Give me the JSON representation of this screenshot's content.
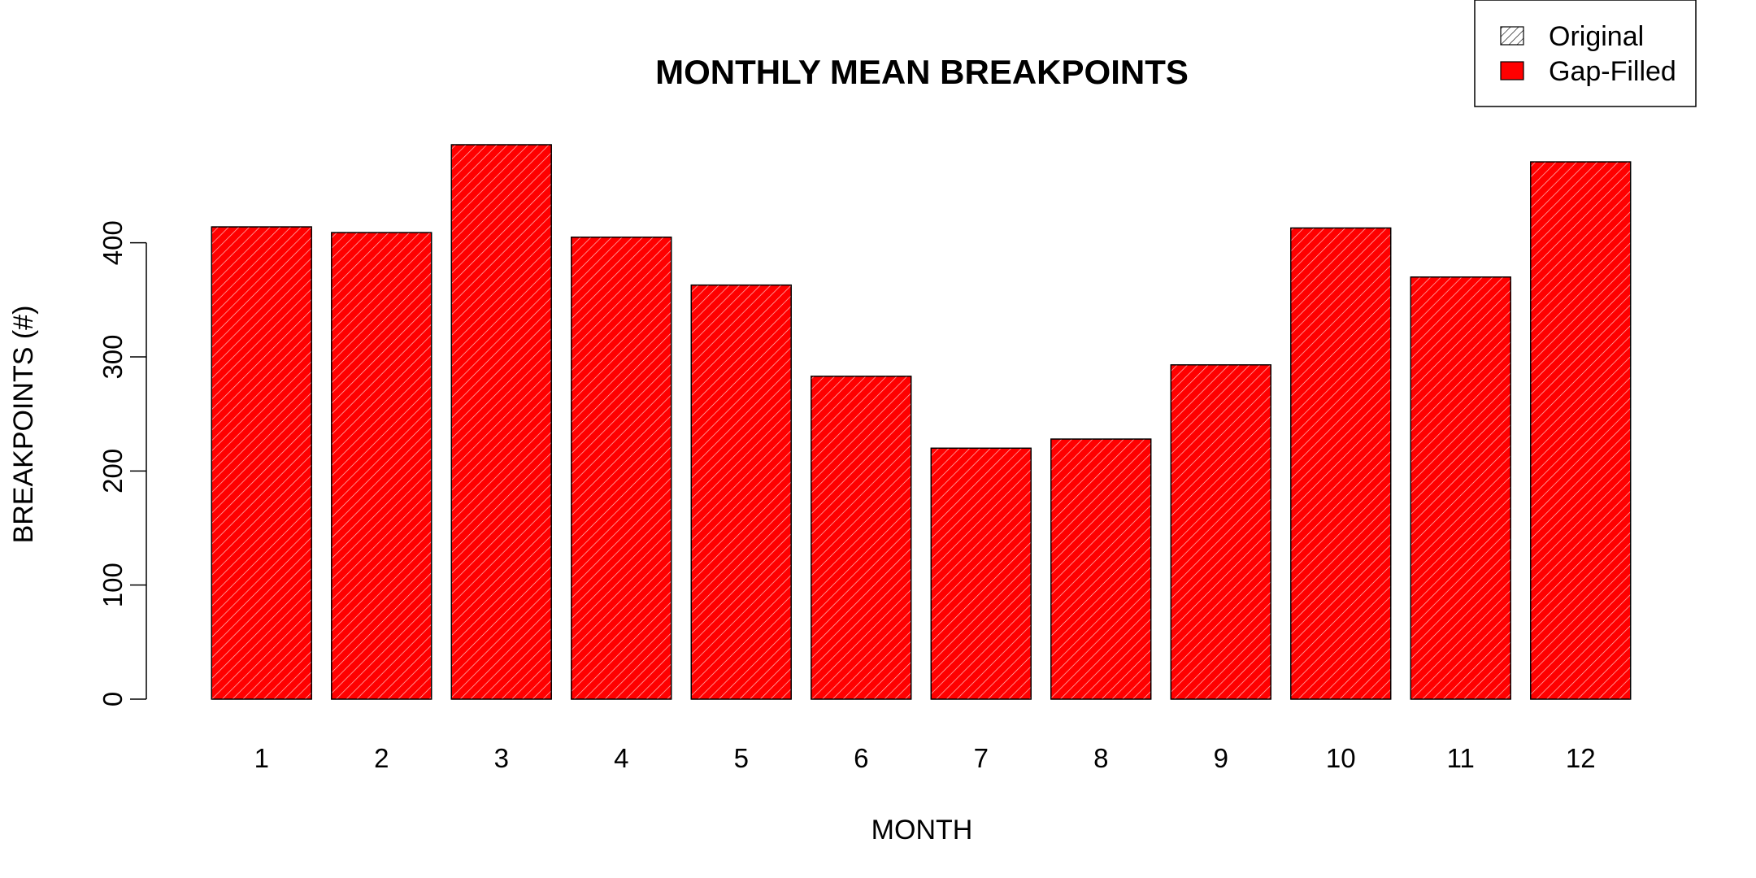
{
  "chart_data": {
    "type": "bar",
    "title": "MONTHLY MEAN BREAKPOINTS",
    "xlabel": "MONTH",
    "ylabel": "BREAKPOINTS (#)",
    "categories": [
      "1",
      "2",
      "3",
      "4",
      "5",
      "6",
      "7",
      "8",
      "9",
      "10",
      "11",
      "12"
    ],
    "series": [
      {
        "name": "Original",
        "fill": "hatched",
        "values": [
          414,
          409,
          486,
          405,
          363,
          283,
          220,
          228,
          293,
          413,
          370,
          471
        ]
      },
      {
        "name": "Gap-Filled",
        "fill": "solid",
        "values": [
          414,
          409,
          486,
          405,
          363,
          283,
          220,
          228,
          293,
          413,
          370,
          471
        ]
      }
    ],
    "yticks": [
      0,
      100,
      200,
      300,
      400
    ],
    "ylim": [
      0,
      486
    ],
    "grid": false,
    "legend": "top-right",
    "colors": {
      "gap_filled": "#ff0000",
      "hatch": "#ffffff",
      "outline": "#000000"
    }
  }
}
